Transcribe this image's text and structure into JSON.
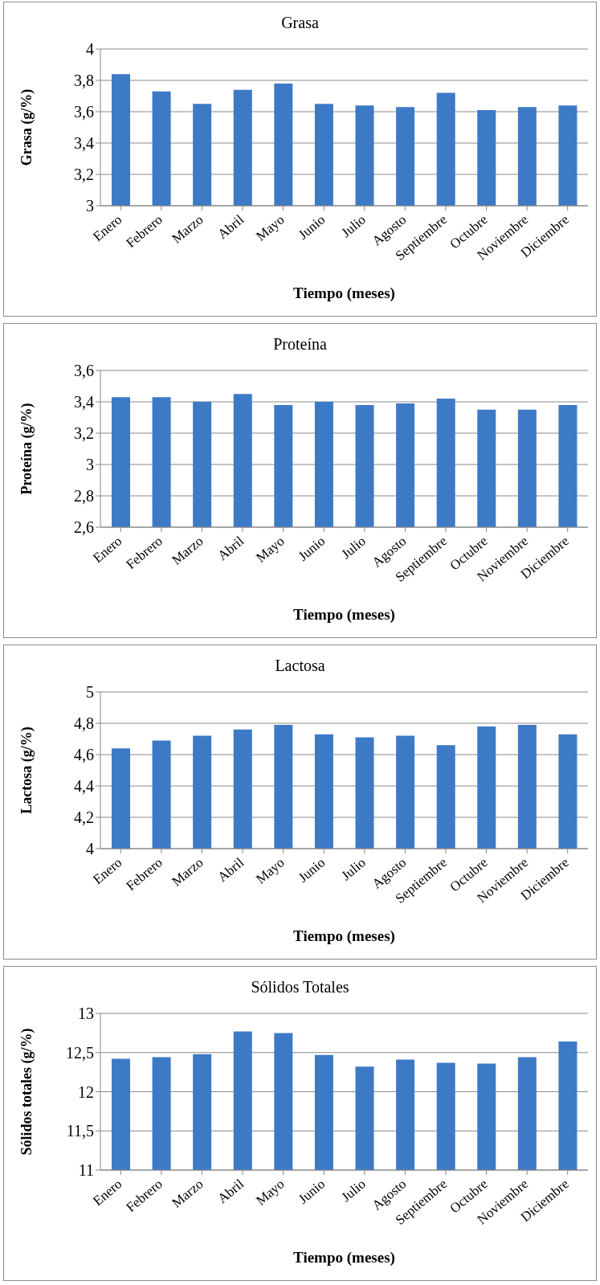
{
  "chart_data": [
    {
      "type": "bar",
      "title": "Grasa",
      "xlabel": "Tiempo (meses)",
      "ylabel": "Grasa (g/%)",
      "categories": [
        "Enero",
        "Febrero",
        "Marzo",
        "Abril",
        "Mayo",
        "Junio",
        "Julio",
        "Agosto",
        "Septiembre",
        "Octubre",
        "Noviembre",
        "Diciembre"
      ],
      "values": [
        3.84,
        3.73,
        3.65,
        3.74,
        3.78,
        3.65,
        3.64,
        3.63,
        3.72,
        3.61,
        3.63,
        3.64
      ],
      "color": "#3d7ac6",
      "ylim": [
        3,
        4
      ],
      "yticks": [
        3,
        {
          "value": 3.2,
          "label": "3,2"
        },
        {
          "value": 3.4,
          "label": "3,4"
        },
        {
          "value": 3.6,
          "label": "3,6"
        },
        {
          "value": 3.8,
          "label": "3,8"
        },
        4
      ],
      "grid": "y"
    },
    {
      "type": "bar",
      "title": "Proteína",
      "xlabel": "Tiempo (meses)",
      "ylabel": "Proteína (g/%)",
      "categories": [
        "Enero",
        "Febrero",
        "Marzo",
        "Abril",
        "Mayo",
        "Junio",
        "Julio",
        "Agosto",
        "Septiembre",
        "Octubre",
        "Noviembre",
        "Diciembre"
      ],
      "values": [
        3.43,
        3.43,
        3.4,
        3.45,
        3.38,
        3.4,
        3.38,
        3.39,
        3.42,
        3.35,
        3.35,
        3.38
      ],
      "color": "#3d7ac6",
      "ylim": [
        2.6,
        3.6
      ],
      "yticks": [
        {
          "value": 2.6,
          "label": "2,6"
        },
        {
          "value": 2.8,
          "label": "2,8"
        },
        3,
        {
          "value": 3.2,
          "label": "3,2"
        },
        {
          "value": 3.4,
          "label": "3,4"
        },
        {
          "value": 3.6,
          "label": "3,6"
        }
      ],
      "grid": "y"
    },
    {
      "type": "bar",
      "title": "Lactosa",
      "xlabel": "Tiempo (meses)",
      "ylabel": "Lactosa (g/%)",
      "categories": [
        "Enero",
        "Febrero",
        "Marzo",
        "Abril",
        "Mayo",
        "Junio",
        "Julio",
        "Agosto",
        "Septiembre",
        "Octubre",
        "Noviembre",
        "Diciembre"
      ],
      "values": [
        4.64,
        4.69,
        4.72,
        4.76,
        4.79,
        4.73,
        4.71,
        4.72,
        4.66,
        4.78,
        4.79,
        4.73
      ],
      "color": "#3d7ac6",
      "ylim": [
        4,
        5
      ],
      "yticks": [
        4,
        {
          "value": 4.2,
          "label": "4,2"
        },
        {
          "value": 4.4,
          "label": "4,4"
        },
        {
          "value": 4.6,
          "label": "4,6"
        },
        {
          "value": 4.8,
          "label": "4,8"
        },
        5
      ],
      "grid": "y"
    },
    {
      "type": "bar",
      "title": "Sólidos Totales",
      "xlabel": "Tiempo (meses)",
      "ylabel": "Sólidos totales (g/%)",
      "categories": [
        "Enero",
        "Febrero",
        "Marzo",
        "Abril",
        "Mayo",
        "Junio",
        "Julio",
        "Agosto",
        "Septiembre",
        "Octubre",
        "Noviembre",
        "Diciembre"
      ],
      "values": [
        12.42,
        12.44,
        12.48,
        12.77,
        12.75,
        12.47,
        12.32,
        12.41,
        12.37,
        12.36,
        12.44,
        12.64
      ],
      "color": "#3d7ac6",
      "ylim": [
        11,
        13
      ],
      "yticks": [
        11,
        {
          "value": 11.5,
          "label": "11,5"
        },
        12,
        {
          "value": 12.5,
          "label": "12,5"
        },
        13
      ],
      "grid": "y"
    }
  ]
}
